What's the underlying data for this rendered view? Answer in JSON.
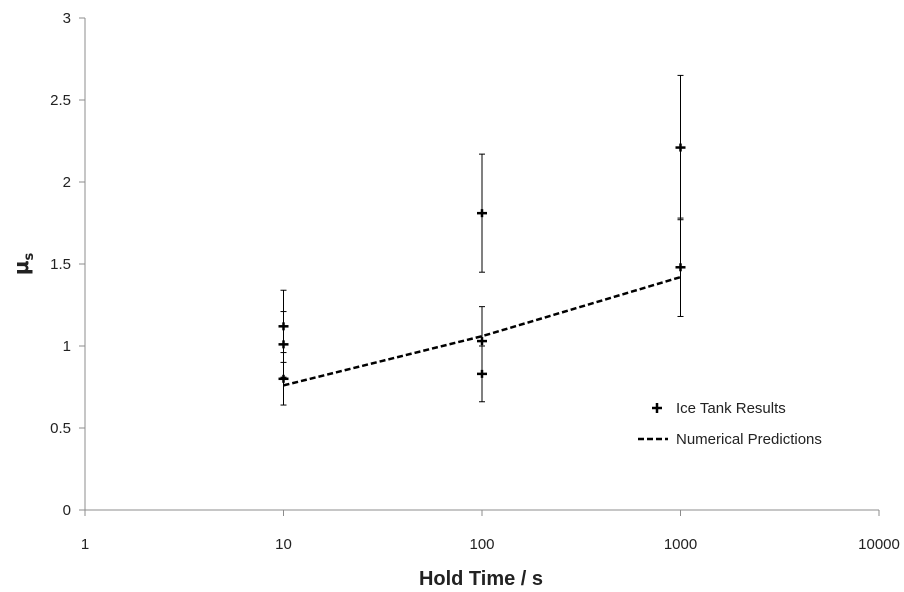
{
  "chart_data": {
    "type": "scatter",
    "title": "",
    "xlabel": "Hold Time / s",
    "ylabel": "μs",
    "ylabel_parts": {
      "main": "μ",
      "sub": "s"
    },
    "x_scale": "log",
    "xlim": [
      1,
      10000
    ],
    "ylim": [
      0,
      3
    ],
    "x_ticks": [
      1,
      10,
      100,
      1000,
      10000
    ],
    "x_tick_labels": [
      "1",
      "10",
      "100",
      "1000",
      "10000"
    ],
    "y_ticks": [
      0,
      0.5,
      1,
      1.5,
      2,
      2.5,
      3
    ],
    "y_tick_labels": [
      "0",
      "0.5",
      "1",
      "1.5",
      "2",
      "2.5",
      "3"
    ],
    "grid": false,
    "legend_position": "bottom-right",
    "series": [
      {
        "name": "Ice Tank Results",
        "marker": "plus",
        "points": [
          {
            "x": 10,
            "y": 1.12,
            "yerr_low": 0.9,
            "yerr_high": 1.34
          },
          {
            "x": 10,
            "y": 1.01,
            "yerr_low": 0.81,
            "yerr_high": 1.21
          },
          {
            "x": 10,
            "y": 0.8,
            "yerr_low": 0.64,
            "yerr_high": 0.96
          },
          {
            "x": 100,
            "y": 1.81,
            "yerr_low": 1.45,
            "yerr_high": 2.17
          },
          {
            "x": 100,
            "y": 1.03,
            "yerr_low": 0.83,
            "yerr_high": 1.24
          },
          {
            "x": 100,
            "y": 0.83,
            "yerr_low": 0.66,
            "yerr_high": 1.0
          },
          {
            "x": 1000,
            "y": 2.21,
            "yerr_low": 1.77,
            "yerr_high": 2.65
          },
          {
            "x": 1000,
            "y": 1.48,
            "yerr_low": 1.18,
            "yerr_high": 1.78
          }
        ]
      },
      {
        "name": "Numerical Predictions",
        "line_style": "dashed",
        "x": [
          10,
          100,
          1000
        ],
        "y": [
          0.76,
          1.06,
          1.42
        ]
      }
    ]
  }
}
